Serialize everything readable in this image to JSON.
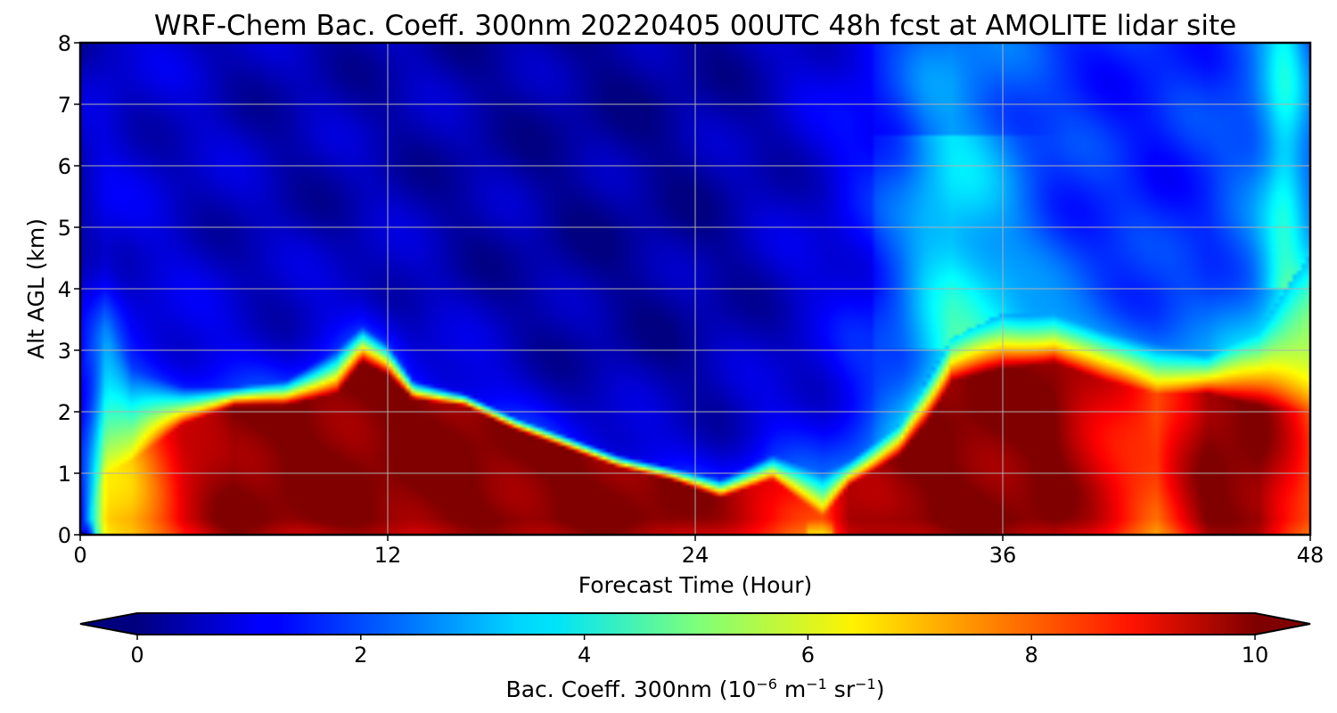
{
  "chart_data": {
    "type": "heatmap",
    "title": "WRF-Chem Bac. Coeff. 300nm  20220405 00UTC 48h fcst at AMOLITE lidar site",
    "xlabel": "Forecast Time (Hour)",
    "ylabel": "Alt AGL (km)",
    "xlim": [
      0,
      48
    ],
    "ylim": [
      0,
      8
    ],
    "x_ticks": [
      "0",
      "12",
      "24",
      "36",
      "48"
    ],
    "y_ticks": [
      "0",
      "1",
      "2",
      "3",
      "4",
      "5",
      "6",
      "7",
      "8"
    ],
    "grid": true,
    "colormap": "jet",
    "colorbar": {
      "label_main": "Bac. Coeff. 300nm  (10",
      "exp1": "−6",
      "unit_a": " m",
      "exp2": "−1",
      "unit_b": " sr",
      "exp3": "−1",
      "close": ")",
      "range": [
        0,
        10
      ],
      "ticks": [
        "0",
        "2",
        "4",
        "6",
        "8",
        "10"
      ],
      "extend": "both",
      "orientation": "horizontal"
    },
    "columns": [
      {
        "x": 0,
        "layer_top_km": 0.0,
        "peak": 1.0,
        "mixing_km": 2.6,
        "free_troposphere": 0.6
      },
      {
        "x": 1,
        "layer_top_km": 1.0,
        "peak": 6.5,
        "mixing_km": 3.6,
        "free_troposphere": 0.9
      },
      {
        "x": 2,
        "layer_top_km": 1.2,
        "peak": 7.0,
        "mixing_km": 2.7,
        "free_troposphere": 0.8
      },
      {
        "x": 4,
        "layer_top_km": 1.8,
        "peak": 9.0,
        "mixing_km": 2.4,
        "free_troposphere": 0.7
      },
      {
        "x": 6,
        "layer_top_km": 2.1,
        "peak": 10.0,
        "mixing_km": 2.4,
        "free_troposphere": 0.6
      },
      {
        "x": 8,
        "layer_top_km": 2.1,
        "peak": 10.0,
        "mixing_km": 2.5,
        "free_troposphere": 0.5
      },
      {
        "x": 10,
        "layer_top_km": 2.3,
        "peak": 10.0,
        "mixing_km": 3.0,
        "free_troposphere": 0.5
      },
      {
        "x": 11,
        "layer_top_km": 2.8,
        "peak": 10.0,
        "mixing_km": 3.4,
        "free_troposphere": 0.5
      },
      {
        "x": 12,
        "layer_top_km": 2.6,
        "peak": 10.0,
        "mixing_km": 3.1,
        "free_troposphere": 0.5
      },
      {
        "x": 13,
        "layer_top_km": 2.2,
        "peak": 10.0,
        "mixing_km": 2.5,
        "free_troposphere": 0.5
      },
      {
        "x": 15,
        "layer_top_km": 2.1,
        "peak": 10.0,
        "mixing_km": 2.3,
        "free_troposphere": 0.4
      },
      {
        "x": 17,
        "layer_top_km": 1.7,
        "peak": 10.0,
        "mixing_km": 1.9,
        "free_troposphere": 0.4
      },
      {
        "x": 19,
        "layer_top_km": 1.4,
        "peak": 10.0,
        "mixing_km": 1.6,
        "free_troposphere": 0.3
      },
      {
        "x": 21,
        "layer_top_km": 1.1,
        "peak": 10.0,
        "mixing_km": 1.3,
        "free_troposphere": 0.3
      },
      {
        "x": 23,
        "layer_top_km": 0.9,
        "peak": 10.0,
        "mixing_km": 1.1,
        "free_troposphere": 0.3
      },
      {
        "x": 25,
        "layer_top_km": 0.6,
        "peak": 9.5,
        "mixing_km": 0.9,
        "free_troposphere": 0.4
      },
      {
        "x": 27,
        "layer_top_km": 0.9,
        "peak": 9.0,
        "mixing_km": 1.3,
        "free_troposphere": 0.6
      },
      {
        "x": 29,
        "layer_top_km": 0.3,
        "peak": 8.0,
        "mixing_km": 1.0,
        "free_troposphere": 0.9
      },
      {
        "x": 30,
        "layer_top_km": 0.8,
        "peak": 9.5,
        "mixing_km": 1.2,
        "free_troposphere": 1.2
      },
      {
        "x": 32,
        "layer_top_km": 1.3,
        "peak": 10.0,
        "mixing_km": 1.8,
        "free_troposphere": 1.6
      },
      {
        "x": 33,
        "layer_top_km": 1.8,
        "peak": 10.0,
        "mixing_km": 2.5,
        "free_troposphere": 2.0
      },
      {
        "x": 34,
        "layer_top_km": 2.5,
        "peak": 10.0,
        "mixing_km": 3.2,
        "free_troposphere": 2.2
      },
      {
        "x": 36,
        "layer_top_km": 2.7,
        "peak": 10.0,
        "mixing_km": 3.6,
        "free_troposphere": 2.0
      },
      {
        "x": 38,
        "layer_top_km": 2.8,
        "peak": 10.0,
        "mixing_km": 3.6,
        "free_troposphere": 1.7
      },
      {
        "x": 40,
        "layer_top_km": 2.5,
        "peak": 9.0,
        "mixing_km": 3.3,
        "free_troposphere": 1.6
      },
      {
        "x": 42,
        "layer_top_km": 2.3,
        "peak": 8.0,
        "mixing_km": 3.1,
        "free_troposphere": 1.5
      },
      {
        "x": 44,
        "layer_top_km": 2.3,
        "peak": 10.0,
        "mixing_km": 2.9,
        "free_troposphere": 1.7
      },
      {
        "x": 46,
        "layer_top_km": 2.1,
        "peak": 10.0,
        "mixing_km": 3.3,
        "free_troposphere": 2.3
      },
      {
        "x": 48,
        "layer_top_km": 2.0,
        "peak": 8.0,
        "mixing_km": 4.6,
        "free_troposphere": 2.0
      }
    ]
  }
}
